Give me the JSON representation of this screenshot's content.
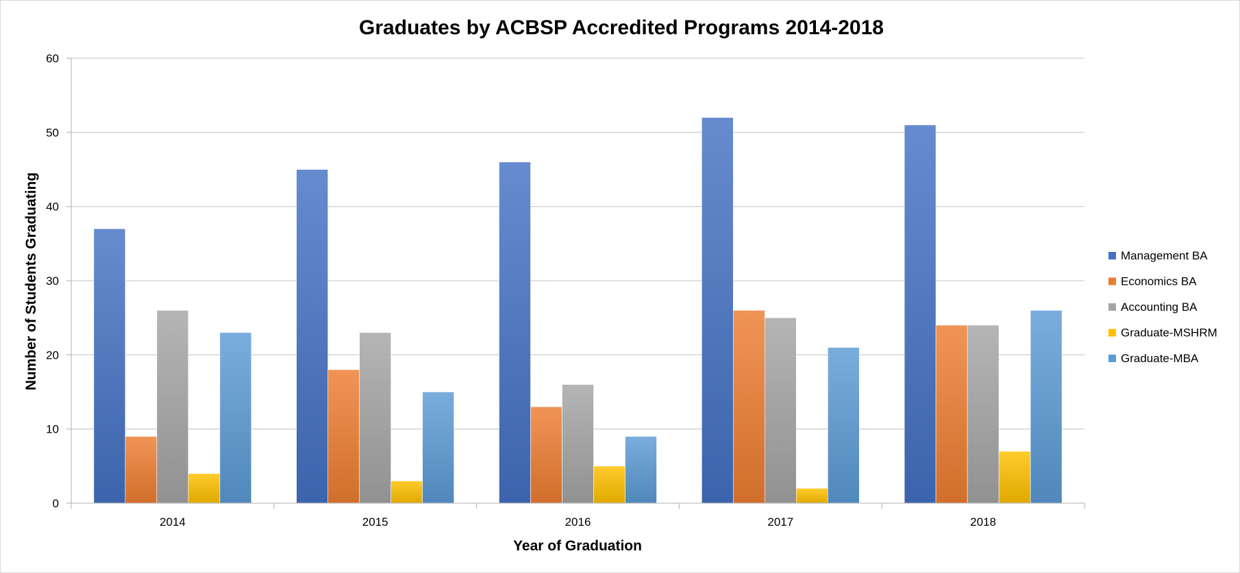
{
  "chart_data": {
    "type": "bar",
    "title": "Graduates by ACBSP Accredited Programs 2014-2018",
    "xlabel": "Year of Graduation",
    "ylabel": "Number of Students Graduating",
    "categories": [
      "2014",
      "2015",
      "2016",
      "2017",
      "2018"
    ],
    "ylim": [
      0,
      60
    ],
    "yticks": [
      0,
      10,
      20,
      30,
      40,
      50,
      60
    ],
    "grid": true,
    "legend_position": "right",
    "series": [
      {
        "name": "Management BA",
        "values": [
          37,
          45,
          46,
          52,
          51
        ],
        "color": "#4472c4"
      },
      {
        "name": "Economics BA",
        "values": [
          9,
          18,
          13,
          26,
          24
        ],
        "color": "#ed7d31"
      },
      {
        "name": "Accounting BA",
        "values": [
          26,
          23,
          16,
          25,
          24
        ],
        "color": "#a5a5a5"
      },
      {
        "name": "Graduate-MSHRM",
        "values": [
          4,
          3,
          5,
          2,
          7
        ],
        "color": "#ffc000"
      },
      {
        "name": "Graduate-MBA",
        "values": [
          23,
          15,
          9,
          21,
          26
        ],
        "color": "#5b9bd5"
      }
    ]
  }
}
